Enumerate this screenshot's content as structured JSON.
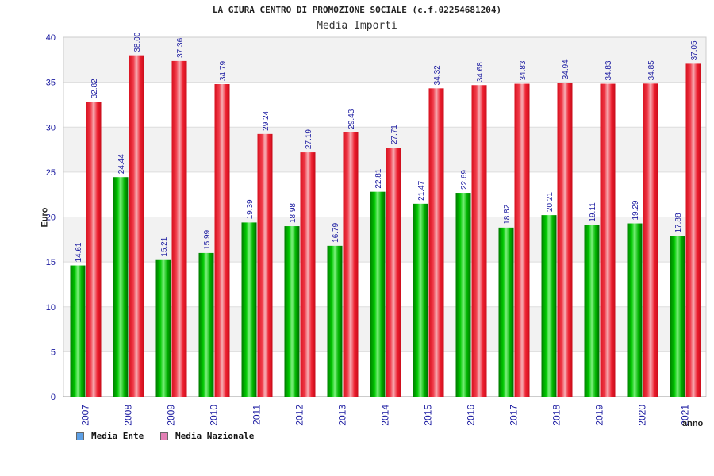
{
  "chart_data": {
    "type": "bar",
    "title": "LA GIURA CENTRO DI PROMOZIONE SOCIALE (c.f.02254681204)",
    "subtitle": "Media Importi",
    "xlabel": "anno",
    "ylabel": "Euro",
    "ylim": [
      0,
      40
    ],
    "yticks": [
      0,
      5,
      10,
      15,
      20,
      25,
      30,
      35,
      40
    ],
    "categories": [
      "2007",
      "2008",
      "2009",
      "2010",
      "2011",
      "2012",
      "2013",
      "2014",
      "2015",
      "2016",
      "2017",
      "2018",
      "2019",
      "2020",
      "2021"
    ],
    "series": [
      {
        "name": "Media Ente",
        "legend_color": "#5da0e6",
        "bar_color": "#00b000",
        "values": [
          14.61,
          24.44,
          15.21,
          15.99,
          19.39,
          18.98,
          16.79,
          22.81,
          21.47,
          22.69,
          18.82,
          20.21,
          19.11,
          19.29,
          17.88
        ]
      },
      {
        "name": "Media Nazionale",
        "legend_color": "#e27fb4",
        "bar_color": "#ee1c2c",
        "values": [
          32.82,
          38.0,
          37.36,
          34.79,
          29.24,
          27.19,
          29.43,
          27.71,
          34.32,
          34.68,
          34.83,
          34.94,
          34.83,
          34.85,
          37.05
        ]
      }
    ],
    "data_labels": [
      [
        "14.61",
        "24.44",
        "15.21",
        "15.99",
        "19.39",
        "18.98",
        "16.79",
        "22.81",
        "21.47",
        "22.69",
        "18.82",
        "20.21",
        "19.11",
        "19.29",
        "17.88"
      ],
      [
        "32.82",
        "38.00",
        "37.36",
        "34.79",
        "29.24",
        "27.19",
        "29.43",
        "27.71",
        "34.32",
        "34.68",
        "34.83",
        "34.94",
        "34.83",
        "34.85",
        "37.05"
      ]
    ],
    "grid": true,
    "legend_position": "bottom-left"
  }
}
